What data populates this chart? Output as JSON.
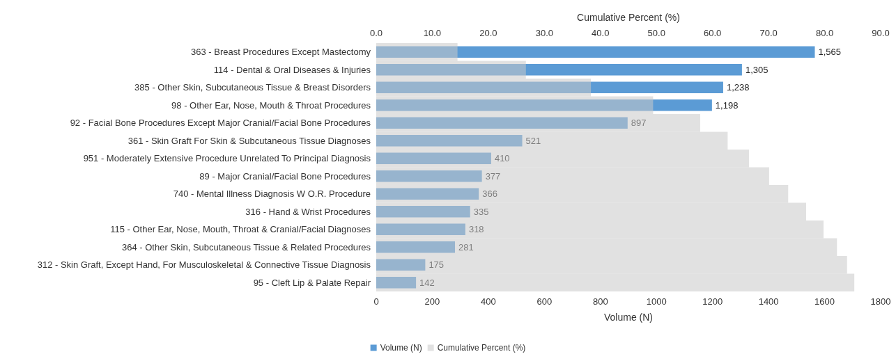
{
  "chart_data": {
    "type": "bar",
    "orientation": "horizontal",
    "categories": [
      "363 - Breast Procedures Except Mastectomy",
      "114 - Dental & Oral Diseases & Injuries",
      "385 - Other Skin, Subcutaneous Tissue & Breast Disorders",
      "98 - Other Ear, Nose, Mouth & Throat Procedures",
      "92 - Facial Bone Procedures Except Major Cranial/Facial Bone Procedures",
      "361 - Skin Graft For Skin & Subcutaneous Tissue Diagnoses",
      "951 - Moderately Extensive Procedure Unrelated To Principal Diagnosis",
      "89 - Major Cranial/Facial Bone Procedures",
      "740 - Mental Illness Diagnosis W O.R. Procedure",
      "316 - Hand & Wrist Procedures",
      "115 - Other Ear, Nose, Mouth, Throat & Cranial/Facial Diagnoses",
      "364 - Other Skin, Subcutaneous Tissue & Related Procedures",
      "312 - Skin Graft, Except Hand, For Musculoskeletal & Connective Tissue Diagnosis",
      "95 - Cleft Lip & Palate Repair"
    ],
    "series": [
      {
        "name": "Volume (N)",
        "color": "#5b9bd5",
        "values": [
          1565,
          1305,
          1238,
          1198,
          897,
          521,
          410,
          377,
          366,
          335,
          318,
          281,
          175,
          142
        ],
        "value_labels": [
          "1,565",
          "1,305",
          "1,238",
          "1,198",
          "897",
          "521",
          "410",
          "377",
          "366",
          "335",
          "318",
          "281",
          "175",
          "142"
        ]
      },
      {
        "name": "Cumulative Percent (%)",
        "color": "#c9c9c9",
        "axis": "x2",
        "values": [
          14.5,
          26.7,
          38.3,
          49.4,
          57.8,
          62.7,
          66.5,
          70.1,
          73.5,
          76.7,
          79.8,
          82.2,
          84.0,
          85.3
        ]
      }
    ],
    "xlabel": "Volume (N)",
    "xlim": [
      0,
      1800
    ],
    "xticks": [
      0,
      200,
      400,
      600,
      800,
      1000,
      1200,
      1400,
      1600,
      1800
    ],
    "x2label": "Cumulative Percent (%)",
    "x2lim": [
      0,
      90
    ],
    "x2ticks": [
      {
        "value": 0,
        "label": "0.0"
      },
      {
        "value": 10,
        "label": "10.0"
      },
      {
        "value": 20,
        "label": "20.0"
      },
      {
        "value": 30,
        "label": "30.0"
      },
      {
        "value": 40,
        "label": "40.0"
      },
      {
        "value": 50,
        "label": "50.0"
      },
      {
        "value": 60,
        "label": "60.0"
      },
      {
        "value": 70,
        "label": "70.0"
      },
      {
        "value": 80,
        "label": "80.0"
      },
      {
        "value": 90,
        "label": "90.0"
      }
    ],
    "legend": "bottom",
    "grid": false
  }
}
